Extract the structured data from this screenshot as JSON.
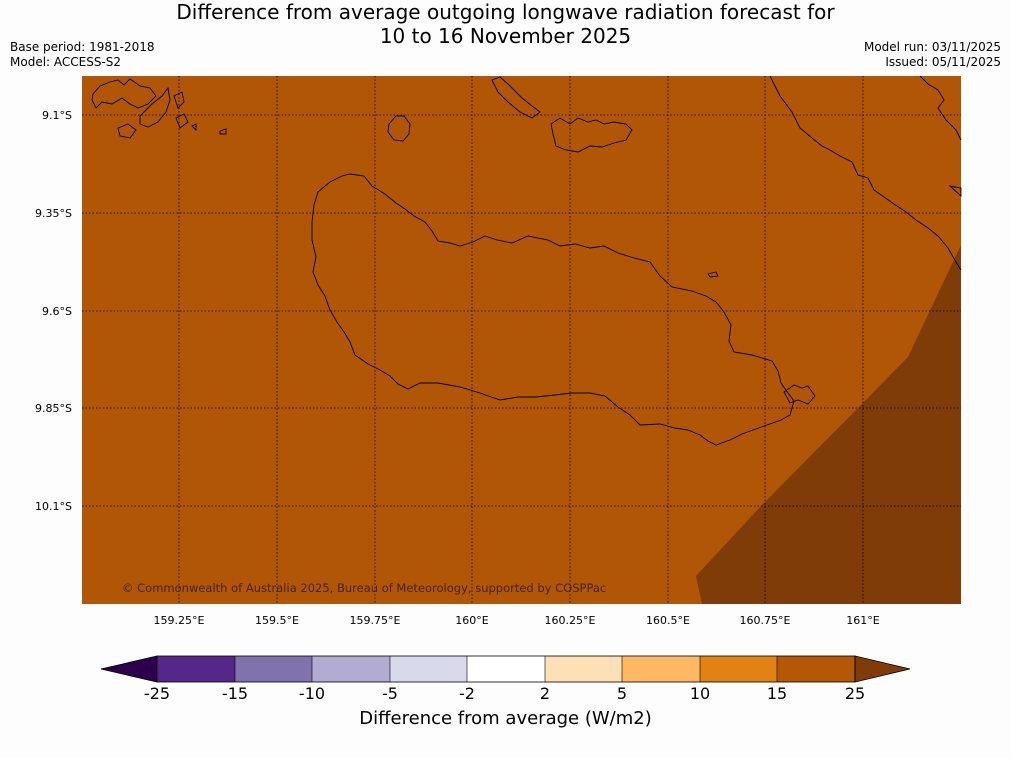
{
  "title": {
    "line1": "Difference from average outgoing longwave radiation forecast for",
    "line2": "10 to 16 November 2025"
  },
  "meta": {
    "base_period": "Base period: 1981-2018",
    "model": "Model: ACCESS-S2",
    "model_run": "Model run: 03/11/2025",
    "issued": "Issued: 05/11/2025"
  },
  "map": {
    "latitude_labels": [
      "9.1°S",
      "9.35°S",
      "9.6°S",
      "9.85°S",
      "10.1°S"
    ],
    "longitude_labels": [
      "159.25°E",
      "159.5°E",
      "159.75°E",
      "160°E",
      "160.25°E",
      "160.5°E",
      "160.75°E",
      "161°E"
    ],
    "copyright": "© Commonwealth of Australia 2025, Bureau of Meteorology, supported by COSPPac",
    "colors": {
      "fill_main": "#b05606",
      "fill_extreme": "#7f3b08",
      "coastline": "#000000"
    }
  },
  "colorbar": {
    "label": "Difference from average (W/m2)",
    "ticks": [
      "-25",
      "-15",
      "-10",
      "-5",
      "-2",
      "2",
      "5",
      "10",
      "15",
      "25"
    ],
    "colors": [
      "#542788",
      "#8073ac",
      "#b2abd2",
      "#d8daeb",
      "#ffffff",
      "#fee0b6",
      "#fdb863",
      "#e08214",
      "#b35806"
    ],
    "extend_low_color": "#2d004b",
    "extend_high_color": "#7f3b08"
  }
}
